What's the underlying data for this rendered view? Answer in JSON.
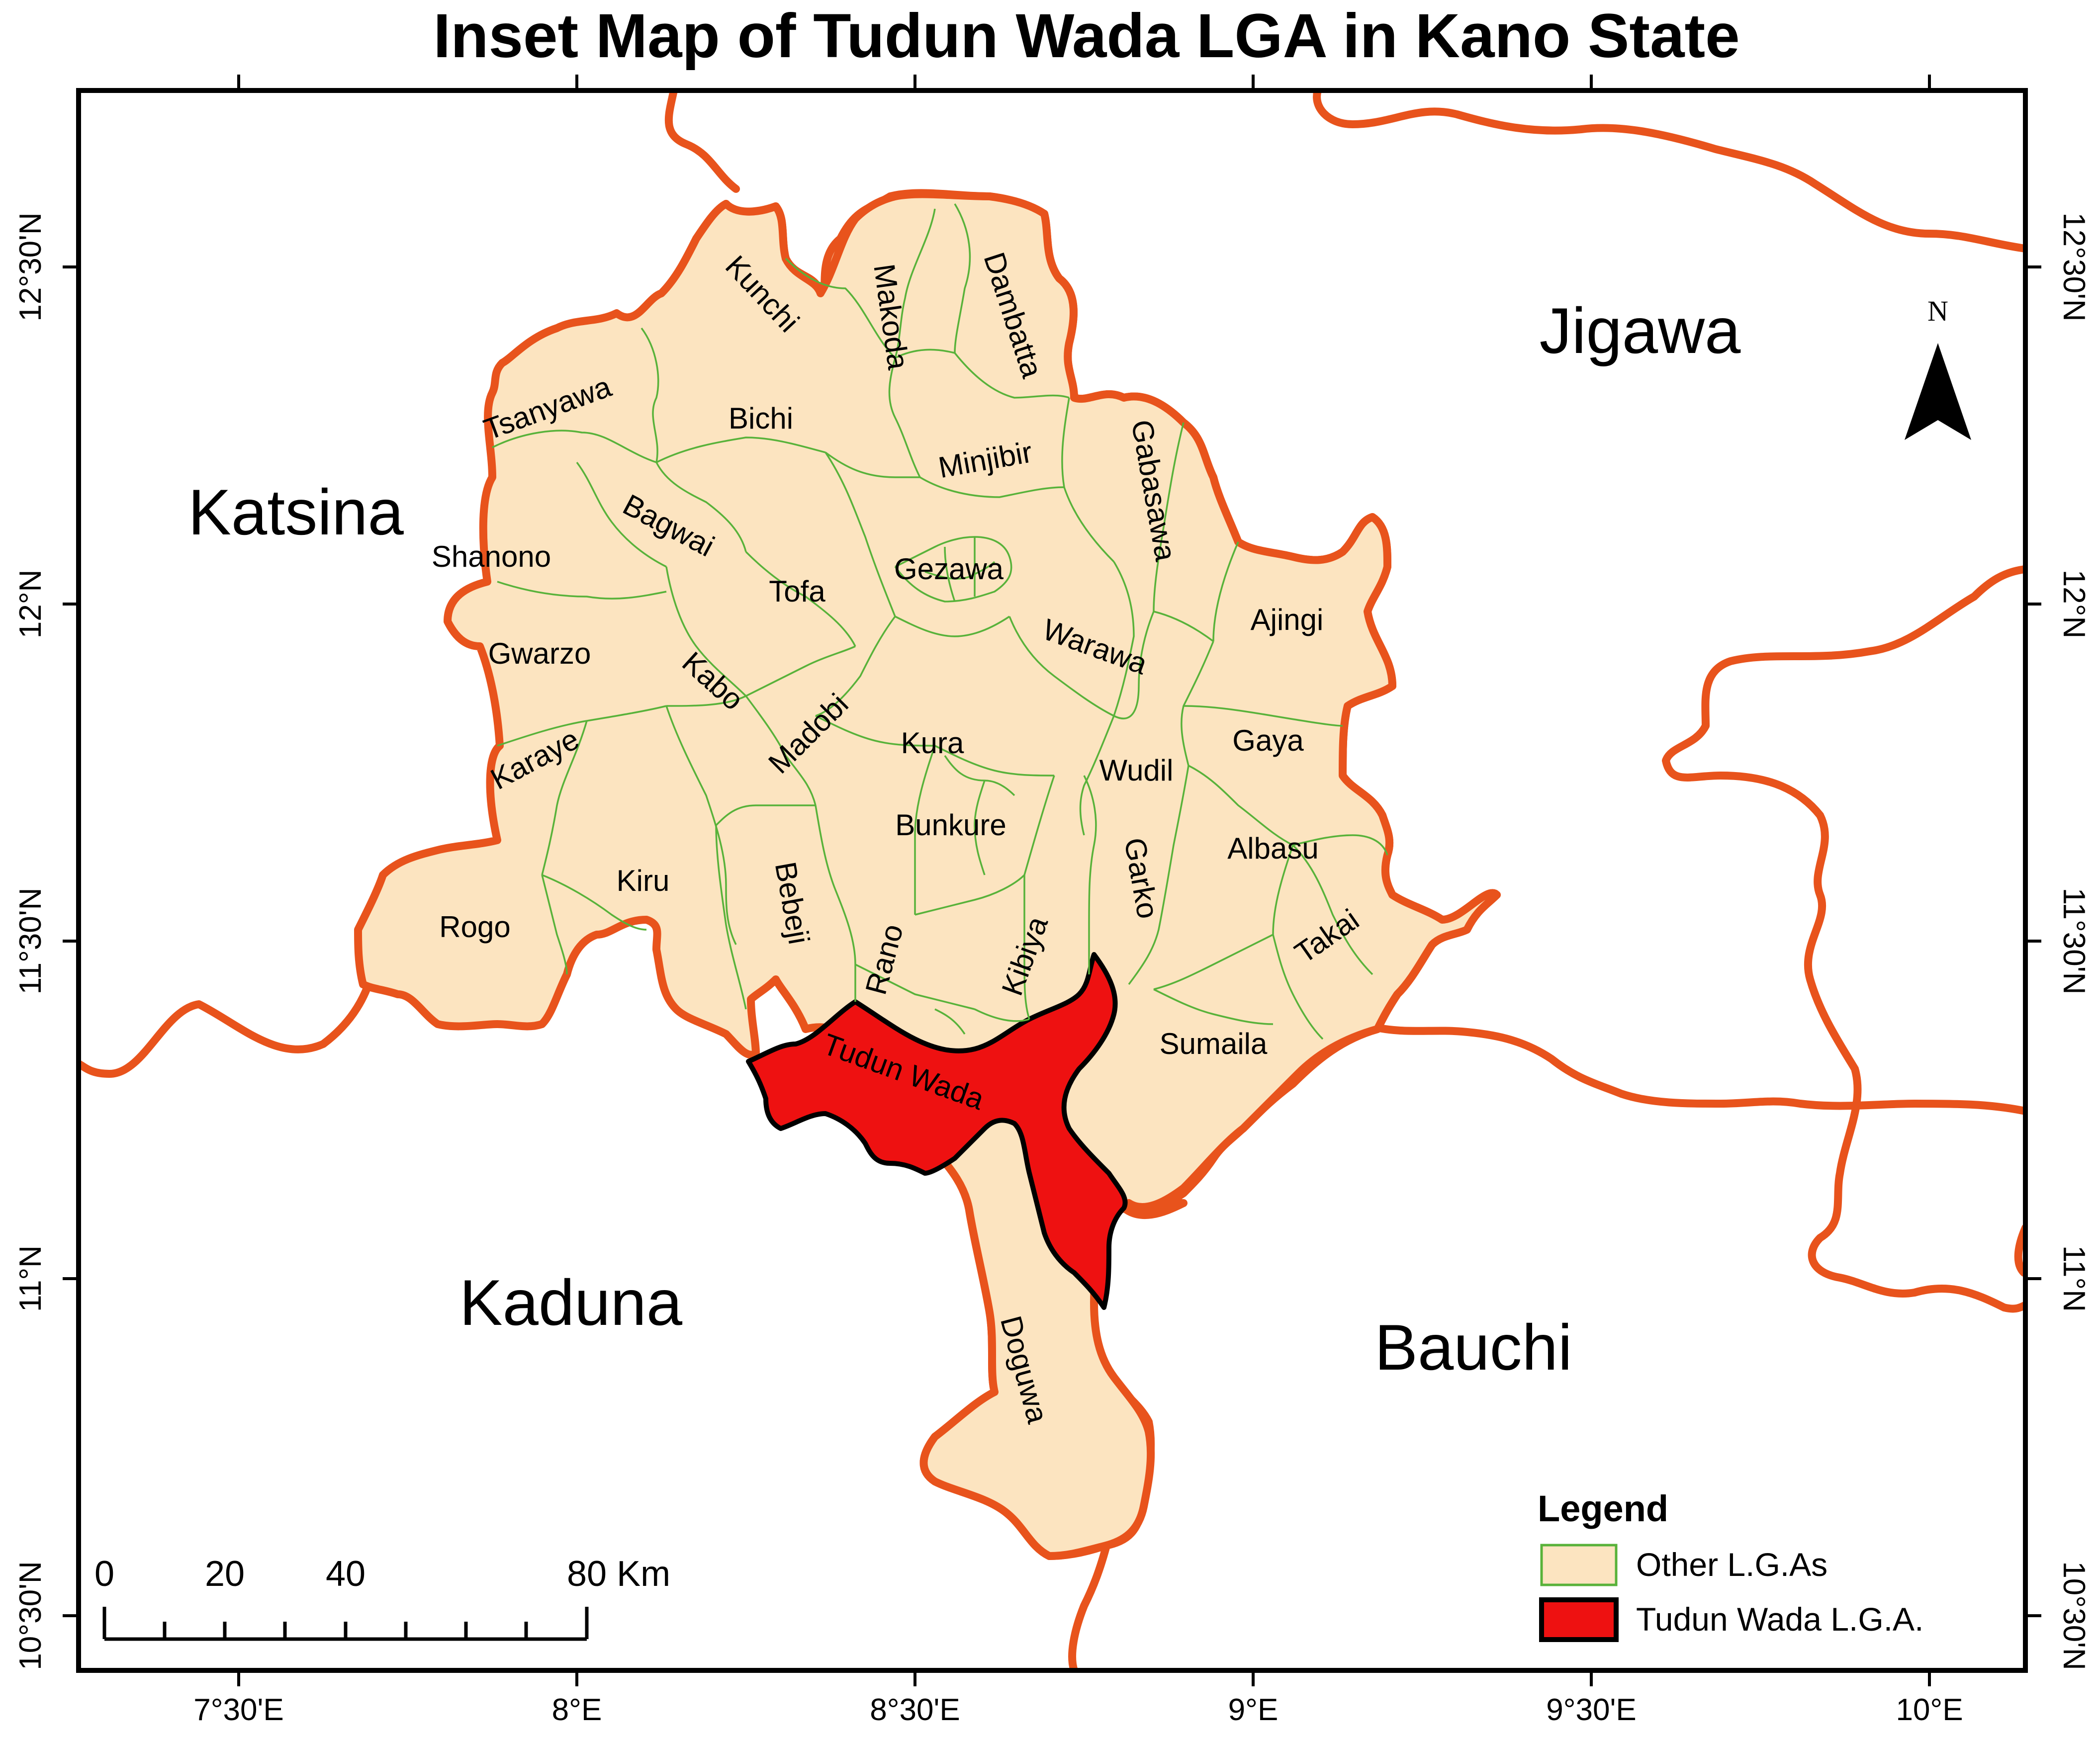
{
  "title": "Inset Map of Tudun Wada LGA  in Kano State",
  "states": [
    {
      "id": "katsina",
      "label": "Katsina"
    },
    {
      "id": "jigawa",
      "label": "Jigawa"
    },
    {
      "id": "kaduna",
      "label": "Kaduna"
    },
    {
      "id": "bauchi",
      "label": "Bauchi"
    }
  ],
  "lgas": [
    {
      "id": "kunchi",
      "label": "Kunchi"
    },
    {
      "id": "makoda",
      "label": "Makoda"
    },
    {
      "id": "dambatta",
      "label": "Dambatta"
    },
    {
      "id": "tsanyawa",
      "label": "Tsanyawa"
    },
    {
      "id": "bichi",
      "label": "Bichi"
    },
    {
      "id": "minjibir",
      "label": "Minjibir"
    },
    {
      "id": "gabasawa",
      "label": "Gabasawa"
    },
    {
      "id": "bagwai",
      "label": "Bagwai"
    },
    {
      "id": "shanono",
      "label": "Shanono"
    },
    {
      "id": "gezawa",
      "label": "Gezawa"
    },
    {
      "id": "tofa",
      "label": "Tofa"
    },
    {
      "id": "ajingi",
      "label": "Ajingi"
    },
    {
      "id": "warawa",
      "label": "Warawa"
    },
    {
      "id": "gwarzo",
      "label": "Gwarzo"
    },
    {
      "id": "kabo",
      "label": "Kabo"
    },
    {
      "id": "madobi",
      "label": "Madobi"
    },
    {
      "id": "kura",
      "label": "Kura"
    },
    {
      "id": "gaya",
      "label": "Gaya"
    },
    {
      "id": "karaye",
      "label": "Karaye"
    },
    {
      "id": "wudil",
      "label": "Wudil"
    },
    {
      "id": "bunkure",
      "label": "Bunkure"
    },
    {
      "id": "albasu",
      "label": "Albasu"
    },
    {
      "id": "kiru",
      "label": "Kiru"
    },
    {
      "id": "bebeji",
      "label": "Bebeji"
    },
    {
      "id": "garko",
      "label": "Garko"
    },
    {
      "id": "rogo",
      "label": "Rogo"
    },
    {
      "id": "rano",
      "label": "Rano"
    },
    {
      "id": "kibiya",
      "label": "Kibiya"
    },
    {
      "id": "takai",
      "label": "Takai"
    },
    {
      "id": "sumaila",
      "label": "Sumaila"
    },
    {
      "id": "tudun-wada",
      "label": "Tudun Wada"
    },
    {
      "id": "doguwa",
      "label": "Doguwa"
    }
  ],
  "axes": {
    "longitude_ticks": [
      "7°30'E",
      "8°E",
      "8°30'E",
      "9°E",
      "9°30'E",
      "10°E"
    ],
    "latitude_ticks": [
      "12°30'N",
      "12°N",
      "11°30'N",
      "11°N",
      "10°30'N"
    ]
  },
  "north_arrow": {
    "label": "N"
  },
  "scale_bar": {
    "labels": [
      "0",
      "20",
      "40",
      "80 Km"
    ]
  },
  "legend": {
    "title": "Legend",
    "items": [
      {
        "label": "Other L.G.As",
        "fill": "#fce4c0",
        "stroke": "#58b23a"
      },
      {
        "label": "Tudun Wada L.G.A.",
        "fill": "#ee1111",
        "stroke": "#000000"
      }
    ]
  },
  "colors": {
    "kano_fill": "#fce4c0",
    "highlight_fill": "#ee1111",
    "state_border": "#e8531c",
    "lga_border": "#58b23a"
  }
}
